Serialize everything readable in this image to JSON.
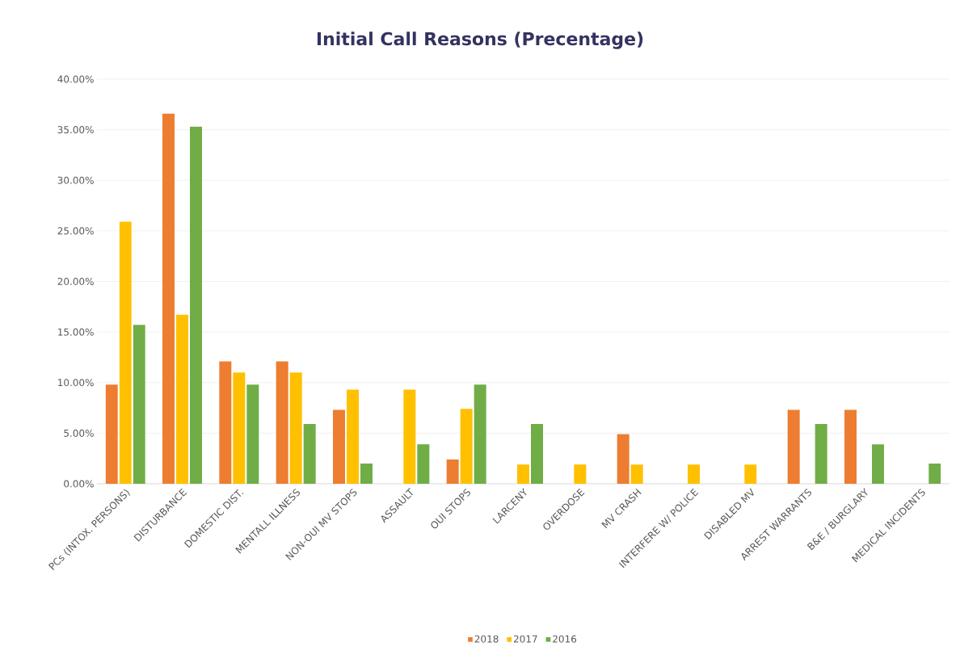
{
  "chart_data": {
    "type": "bar",
    "title": "Initial Call Reasons (Precentage)",
    "categories": [
      "PCs (INTOX. PERSONS)",
      "DISTURBANCE",
      "DOMESTIC DIST.",
      "MENTALL ILLNESS",
      "NON-OUI MV STOPS",
      "ASSAULT",
      "OUI STOPS",
      "LARCENY",
      "OVERDOSE",
      "MV CRASH",
      "INTERFERE W/ POLICE",
      "DISABLED MV",
      "ARREST WARRANTS",
      "B&E / BURGLARY",
      "MEDICAL INCIDENTS"
    ],
    "series": [
      {
        "name": "2018",
        "color": "#ed7d31",
        "values": [
          9.8,
          36.6,
          12.1,
          12.1,
          7.3,
          null,
          2.4,
          null,
          null,
          4.9,
          null,
          null,
          7.3,
          7.3,
          null
        ]
      },
      {
        "name": "2017",
        "color": "#ffc000",
        "values": [
          25.9,
          16.7,
          11.0,
          11.0,
          9.3,
          9.3,
          7.4,
          1.9,
          1.9,
          1.9,
          1.9,
          1.9,
          null,
          null,
          null
        ]
      },
      {
        "name": "2016",
        "color": "#70ad47",
        "values": [
          15.7,
          35.3,
          9.8,
          5.9,
          2.0,
          3.9,
          9.8,
          5.9,
          null,
          null,
          null,
          null,
          5.9,
          3.9,
          2.0
        ]
      }
    ],
    "ylim": [
      0,
      40
    ],
    "yticks": [
      {
        "value": 0,
        "label": "0.00%"
      },
      {
        "value": 5,
        "label": "5.00%"
      },
      {
        "value": 10,
        "label": "10.00%"
      },
      {
        "value": 15,
        "label": "15.00%"
      },
      {
        "value": 20,
        "label": "20.00%"
      },
      {
        "value": 25,
        "label": "25.00%"
      },
      {
        "value": 30,
        "label": "30.00%"
      },
      {
        "value": 35,
        "label": "35.00%"
      },
      {
        "value": 40,
        "label": "40.00%"
      }
    ],
    "grid": "y",
    "legend": "bottom"
  }
}
